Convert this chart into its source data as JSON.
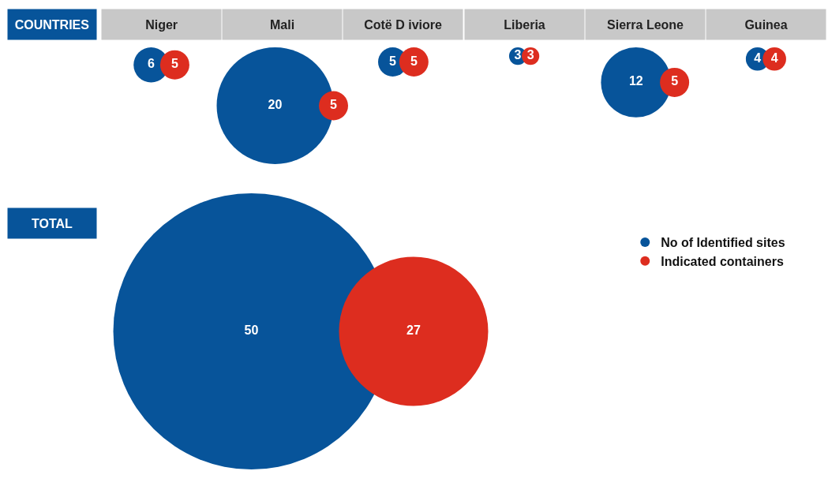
{
  "chart_data": [
    {
      "type": "other",
      "title": "COUNTRIES",
      "categories": [
        "Niger",
        "Mali",
        "Cotë D iviore",
        "Liberia",
        "Sierra Leone",
        "Guinea"
      ],
      "series": [
        {
          "color": "#07549a",
          "values": [
            6,
            20,
            5,
            3,
            12,
            4
          ]
        },
        {
          "color": "#dd2d1f",
          "values": [
            5,
            5,
            5,
            3,
            5,
            4
          ]
        }
      ],
      "data_labels": true
    },
    {
      "type": "other",
      "categories": [
        "TOTAL"
      ],
      "series": [
        {
          "name": "No of Identified sites",
          "color": "#07549a",
          "values": [
            50
          ]
        },
        {
          "name": "Indicated containers",
          "color": "#dd2d1f",
          "values": [
            27
          ]
        }
      ],
      "data_labels": true,
      "legend": "right"
    }
  ]
}
